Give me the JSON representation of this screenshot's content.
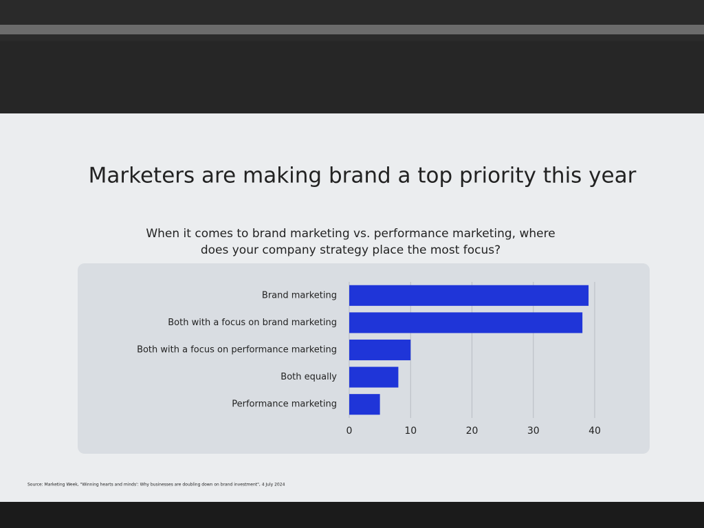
{
  "chart_data": {
    "type": "bar",
    "orientation": "horizontal",
    "title": "Marketers are making brand a top priority this year",
    "subtitle": "When it comes to brand marketing vs. performance marketing, where does your company strategy place the most focus?",
    "categories": [
      "Brand marketing",
      "Both with a focus on brand marketing",
      "Both with a focus on performance marketing",
      "Both equally",
      "Performance marketing"
    ],
    "values": [
      39,
      38,
      10,
      8,
      5
    ],
    "color": "#1f35d8",
    "xlim": [
      0,
      40
    ],
    "xticks": [
      0,
      10,
      20,
      30,
      40
    ],
    "grid": true,
    "source": "Source: Marketing Week, \"Winning hearts and minds': Why businesses are doubling down on brand investment\", 4 July 2024"
  }
}
